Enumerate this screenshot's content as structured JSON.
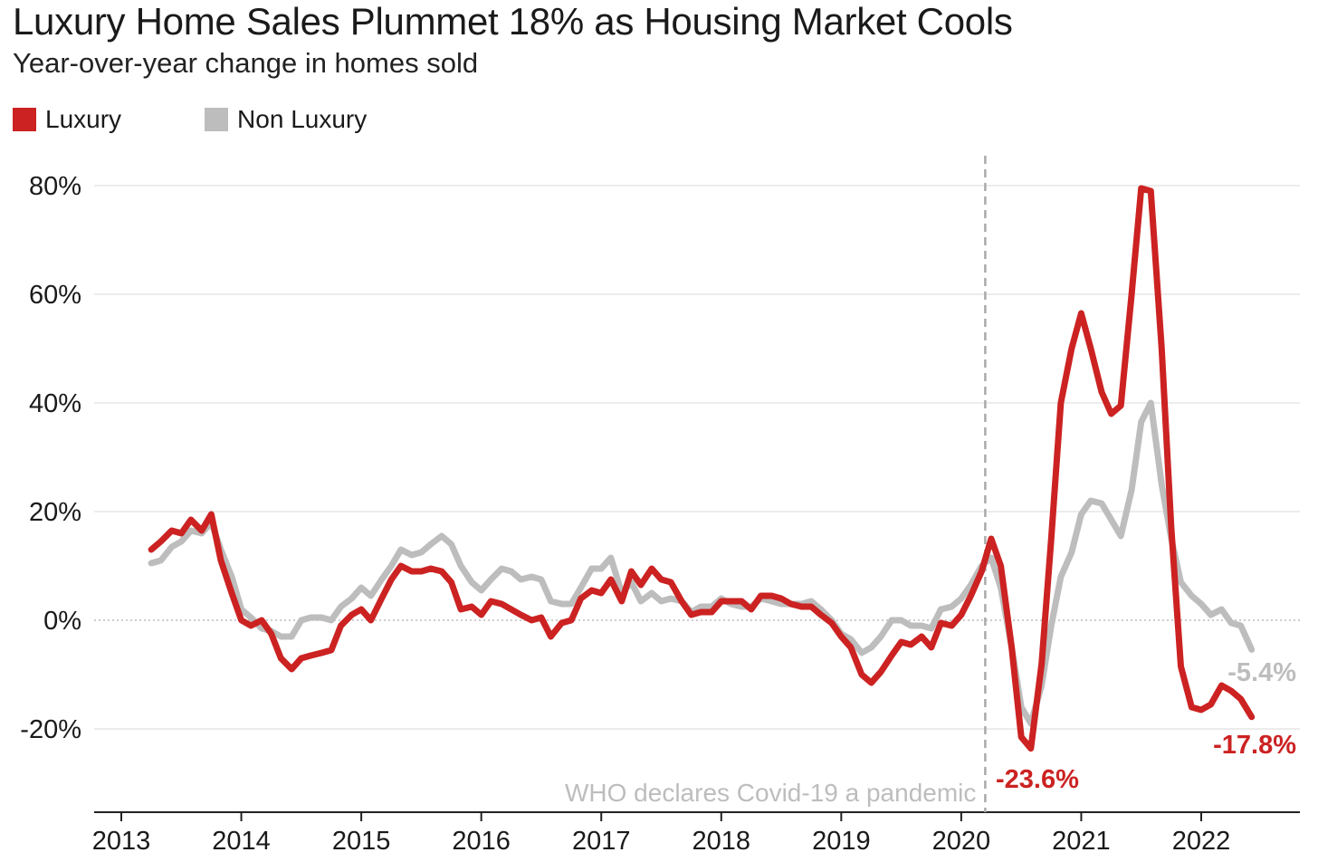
{
  "colors": {
    "luxury": "#cc2222",
    "non_luxury": "#bdbdbd",
    "grid": "#e6e6e6",
    "axis": "#222222",
    "annotation": "#bdbdbd"
  },
  "chart_data": {
    "type": "line",
    "title": "Luxury Home Sales Plummet 18% as Housing Market Cools",
    "subtitle": "Year-over-year change in homes sold",
    "legend": [
      "Luxury",
      "Non Luxury"
    ],
    "legend_placement": "top-left",
    "grid": true,
    "ylim": [
      -35,
      85
    ],
    "xlim": [
      2012.75,
      2022.85
    ],
    "y_ticks": [
      80,
      60,
      40,
      20,
      0,
      -20
    ],
    "y_tick_labels": [
      "80%",
      "60%",
      "40%",
      "20%",
      "0%",
      "-20%"
    ],
    "x_ticks": [
      2013,
      2014,
      2015,
      2016,
      2017,
      2018,
      2019,
      2020,
      2021,
      2022
    ],
    "x_tick_labels": [
      "2013",
      "2014",
      "2015",
      "2016",
      "2017",
      "2018",
      "2019",
      "2020",
      "2021",
      "2022"
    ],
    "series": [
      {
        "name": "Luxury",
        "color": "#cc2222",
        "end_label": "-17.8%",
        "points": [
          [
            2013.25,
            13
          ],
          [
            2013.33,
            14.5
          ],
          [
            2013.42,
            16.5
          ],
          [
            2013.5,
            16
          ],
          [
            2013.58,
            18.5
          ],
          [
            2013.67,
            16.5
          ],
          [
            2013.75,
            19.5
          ],
          [
            2013.83,
            11
          ],
          [
            2013.92,
            5
          ],
          [
            2014.0,
            0
          ],
          [
            2014.08,
            -1
          ],
          [
            2014.17,
            0
          ],
          [
            2014.25,
            -2.5
          ],
          [
            2014.33,
            -7
          ],
          [
            2014.42,
            -9
          ],
          [
            2014.5,
            -7
          ],
          [
            2014.58,
            -6.5
          ],
          [
            2014.67,
            -6
          ],
          [
            2014.75,
            -5.5
          ],
          [
            2014.83,
            -1
          ],
          [
            2014.92,
            1
          ],
          [
            2015.0,
            2
          ],
          [
            2015.08,
            0
          ],
          [
            2015.17,
            4
          ],
          [
            2015.25,
            7.5
          ],
          [
            2015.33,
            10
          ],
          [
            2015.42,
            9
          ],
          [
            2015.5,
            9
          ],
          [
            2015.58,
            9.5
          ],
          [
            2015.67,
            9
          ],
          [
            2015.75,
            7
          ],
          [
            2015.83,
            2
          ],
          [
            2015.92,
            2.5
          ],
          [
            2016.0,
            1
          ],
          [
            2016.08,
            3.5
          ],
          [
            2016.17,
            3
          ],
          [
            2016.25,
            2
          ],
          [
            2016.33,
            1
          ],
          [
            2016.42,
            0
          ],
          [
            2016.5,
            0.5
          ],
          [
            2016.58,
            -3
          ],
          [
            2016.67,
            -0.5
          ],
          [
            2016.75,
            0
          ],
          [
            2016.83,
            4
          ],
          [
            2016.92,
            5.5
          ],
          [
            2017.0,
            5
          ],
          [
            2017.08,
            7.5
          ],
          [
            2017.17,
            3.5
          ],
          [
            2017.25,
            9
          ],
          [
            2017.33,
            6.5
          ],
          [
            2017.42,
            9.5
          ],
          [
            2017.5,
            7.5
          ],
          [
            2017.58,
            7
          ],
          [
            2017.67,
            3.5
          ],
          [
            2017.75,
            1
          ],
          [
            2017.83,
            1.5
          ],
          [
            2017.92,
            1.5
          ],
          [
            2018.0,
            3.5
          ],
          [
            2018.08,
            3.5
          ],
          [
            2018.17,
            3.5
          ],
          [
            2018.25,
            2
          ],
          [
            2018.33,
            4.5
          ],
          [
            2018.42,
            4.5
          ],
          [
            2018.5,
            4
          ],
          [
            2018.58,
            3
          ],
          [
            2018.67,
            2.5
          ],
          [
            2018.75,
            2.5
          ],
          [
            2018.83,
            1
          ],
          [
            2018.92,
            -0.5
          ],
          [
            2019.0,
            -3
          ],
          [
            2019.08,
            -5
          ],
          [
            2019.17,
            -10
          ],
          [
            2019.25,
            -11.5
          ],
          [
            2019.33,
            -9.5
          ],
          [
            2019.42,
            -6.5
          ],
          [
            2019.5,
            -4
          ],
          [
            2019.58,
            -4.5
          ],
          [
            2019.67,
            -3
          ],
          [
            2019.75,
            -5
          ],
          [
            2019.83,
            -0.5
          ],
          [
            2019.92,
            -1
          ],
          [
            2020.0,
            1
          ],
          [
            2020.08,
            4.5
          ],
          [
            2020.17,
            9
          ],
          [
            2020.25,
            15
          ],
          [
            2020.33,
            10
          ],
          [
            2020.42,
            -5
          ],
          [
            2020.5,
            -21.5
          ],
          [
            2020.58,
            -23.6
          ],
          [
            2020.67,
            -8
          ],
          [
            2020.75,
            15
          ],
          [
            2020.83,
            40
          ],
          [
            2020.92,
            50
          ],
          [
            2021.0,
            56.5
          ],
          [
            2021.08,
            50
          ],
          [
            2021.17,
            42
          ],
          [
            2021.25,
            38
          ],
          [
            2021.33,
            39.5
          ],
          [
            2021.42,
            60
          ],
          [
            2021.5,
            79.5
          ],
          [
            2021.58,
            79
          ],
          [
            2021.67,
            50
          ],
          [
            2021.75,
            17
          ],
          [
            2021.83,
            -8.5
          ],
          [
            2021.92,
            -16
          ],
          [
            2022.0,
            -16.5
          ],
          [
            2022.08,
            -15.5
          ],
          [
            2022.17,
            -12
          ],
          [
            2022.25,
            -13
          ],
          [
            2022.33,
            -14.5
          ],
          [
            2022.42,
            -17.8
          ]
        ]
      },
      {
        "name": "Non Luxury",
        "color": "#bdbdbd",
        "end_label": "-5.4%",
        "points": [
          [
            2013.25,
            10.5
          ],
          [
            2013.33,
            11
          ],
          [
            2013.42,
            13.5
          ],
          [
            2013.5,
            14.5
          ],
          [
            2013.58,
            16.5
          ],
          [
            2013.67,
            16
          ],
          [
            2013.75,
            18
          ],
          [
            2013.83,
            13
          ],
          [
            2013.92,
            8
          ],
          [
            2014.0,
            2
          ],
          [
            2014.08,
            0.5
          ],
          [
            2014.17,
            -1.5
          ],
          [
            2014.25,
            -2
          ],
          [
            2014.33,
            -3
          ],
          [
            2014.42,
            -3
          ],
          [
            2014.5,
            0
          ],
          [
            2014.58,
            0.5
          ],
          [
            2014.67,
            0.5
          ],
          [
            2014.75,
            0
          ],
          [
            2014.83,
            2.5
          ],
          [
            2014.92,
            4
          ],
          [
            2015.0,
            6
          ],
          [
            2015.08,
            4.5
          ],
          [
            2015.17,
            7.5
          ],
          [
            2015.25,
            10
          ],
          [
            2015.33,
            13
          ],
          [
            2015.42,
            12
          ],
          [
            2015.5,
            12.5
          ],
          [
            2015.58,
            14
          ],
          [
            2015.67,
            15.5
          ],
          [
            2015.75,
            14
          ],
          [
            2015.83,
            10
          ],
          [
            2015.92,
            7
          ],
          [
            2016.0,
            5.5
          ],
          [
            2016.08,
            7.5
          ],
          [
            2016.17,
            9.5
          ],
          [
            2016.25,
            9
          ],
          [
            2016.33,
            7.5
          ],
          [
            2016.42,
            8
          ],
          [
            2016.5,
            7.5
          ],
          [
            2016.58,
            3.5
          ],
          [
            2016.67,
            3
          ],
          [
            2016.75,
            3
          ],
          [
            2016.83,
            6
          ],
          [
            2016.92,
            9.5
          ],
          [
            2017.0,
            9.5
          ],
          [
            2017.08,
            11.5
          ],
          [
            2017.17,
            5
          ],
          [
            2017.25,
            7
          ],
          [
            2017.33,
            3.5
          ],
          [
            2017.42,
            5
          ],
          [
            2017.5,
            3.5
          ],
          [
            2017.58,
            4
          ],
          [
            2017.67,
            3.5
          ],
          [
            2017.75,
            1.5
          ],
          [
            2017.83,
            2.5
          ],
          [
            2017.92,
            2.5
          ],
          [
            2018.0,
            4
          ],
          [
            2018.08,
            3
          ],
          [
            2018.17,
            2.5
          ],
          [
            2018.25,
            2.5
          ],
          [
            2018.33,
            4
          ],
          [
            2018.42,
            3.5
          ],
          [
            2018.5,
            3
          ],
          [
            2018.58,
            3
          ],
          [
            2018.67,
            3
          ],
          [
            2018.75,
            3.5
          ],
          [
            2018.83,
            2
          ],
          [
            2018.92,
            0
          ],
          [
            2019.0,
            -2.5
          ],
          [
            2019.08,
            -3.5
          ],
          [
            2019.17,
            -6
          ],
          [
            2019.25,
            -5
          ],
          [
            2019.33,
            -3
          ],
          [
            2019.42,
            0
          ],
          [
            2019.5,
            0
          ],
          [
            2019.58,
            -1
          ],
          [
            2019.67,
            -1
          ],
          [
            2019.75,
            -1.5
          ],
          [
            2019.83,
            2
          ],
          [
            2019.92,
            2.5
          ],
          [
            2020.0,
            4
          ],
          [
            2020.08,
            6.5
          ],
          [
            2020.17,
            10
          ],
          [
            2020.25,
            11.5
          ],
          [
            2020.33,
            6
          ],
          [
            2020.42,
            -5
          ],
          [
            2020.5,
            -16
          ],
          [
            2020.58,
            -19
          ],
          [
            2020.67,
            -12
          ],
          [
            2020.75,
            -1
          ],
          [
            2020.83,
            8
          ],
          [
            2020.92,
            12.5
          ],
          [
            2021.0,
            19.5
          ],
          [
            2021.08,
            22
          ],
          [
            2021.17,
            21.5
          ],
          [
            2021.25,
            18.5
          ],
          [
            2021.33,
            15.5
          ],
          [
            2021.42,
            24
          ],
          [
            2021.5,
            36.5
          ],
          [
            2021.58,
            40
          ],
          [
            2021.67,
            25
          ],
          [
            2021.75,
            15
          ],
          [
            2021.83,
            7
          ],
          [
            2021.92,
            4.5
          ],
          [
            2022.0,
            3
          ],
          [
            2022.08,
            1
          ],
          [
            2022.17,
            2
          ],
          [
            2022.25,
            -0.5
          ],
          [
            2022.33,
            -1
          ],
          [
            2022.42,
            -5.4
          ]
        ]
      }
    ],
    "annotations": [
      {
        "text": "WHO declares Covid-19 a pandemic",
        "x": 2020.2,
        "type": "vertical-dashed-line"
      },
      {
        "text": "-23.6%",
        "series": "Luxury",
        "x": 2020.58,
        "y": -23.6
      }
    ]
  }
}
